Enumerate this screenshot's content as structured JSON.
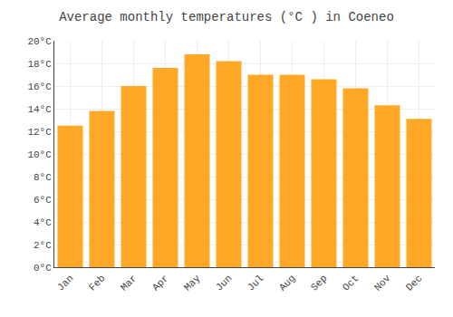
{
  "chart_data": {
    "type": "bar",
    "title": "Average monthly temperatures (°C ) in Coeneo",
    "categories": [
      "Jan",
      "Feb",
      "Mar",
      "Apr",
      "May",
      "Jun",
      "Jul",
      "Aug",
      "Sep",
      "Oct",
      "Nov",
      "Dec"
    ],
    "values": [
      12.5,
      13.8,
      16.0,
      17.6,
      18.8,
      18.2,
      17.0,
      17.0,
      16.6,
      15.8,
      14.3,
      13.1
    ],
    "color": "#FFA726",
    "ylim": [
      0,
      20
    ],
    "yticks": [
      {
        "value": 0,
        "label": "0°C"
      },
      {
        "value": 2,
        "label": "2°C"
      },
      {
        "value": 4,
        "label": "4°C"
      },
      {
        "value": 6,
        "label": "6°C"
      },
      {
        "value": 8,
        "label": "8°C"
      },
      {
        "value": 10,
        "label": "10°C"
      },
      {
        "value": 12,
        "label": "12°C"
      },
      {
        "value": 14,
        "label": "14°C"
      },
      {
        "value": 16,
        "label": "16°C"
      },
      {
        "value": 18,
        "label": "18°C"
      },
      {
        "value": 20,
        "label": "20°C"
      }
    ],
    "grid": true
  }
}
